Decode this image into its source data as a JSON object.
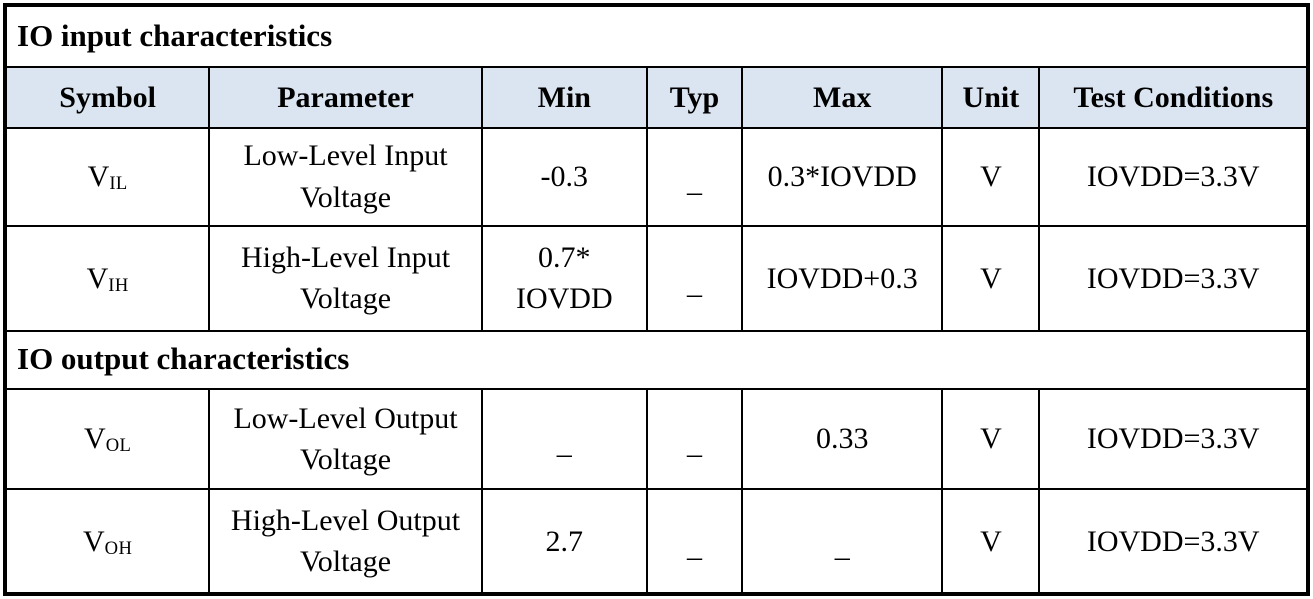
{
  "page": {
    "background_color": "#ffffff",
    "border_color": "#000000",
    "header_bg_color": "#dbe5f1",
    "text_color": "#000000"
  },
  "table": {
    "sections": [
      {
        "title": "IO input characteristics"
      },
      {
        "title": "IO output characteristics"
      }
    ],
    "columns": [
      "Symbol",
      "Parameter",
      "Min",
      "Typ",
      "Max",
      "Unit",
      "Test Conditions"
    ],
    "rows": [
      {
        "symbol_base": "V",
        "symbol_sub": "IL",
        "parameter": "Low-Level Input\nVoltage",
        "min": "-0.3",
        "typ": "_",
        "max": "0.3*IOVDD",
        "unit": "V",
        "test_conditions": "IOVDD=3.3V"
      },
      {
        "symbol_base": "V",
        "symbol_sub": "IH",
        "parameter": "High-Level Input\nVoltage",
        "min": "0.7*\nIOVDD",
        "typ": "_",
        "max": "IOVDD+0.3",
        "unit": "V",
        "test_conditions": "IOVDD=3.3V"
      },
      {
        "symbol_base": "V",
        "symbol_sub": "OL",
        "parameter": "Low-Level Output\nVoltage",
        "min": "_",
        "typ": "_",
        "max": "0.33",
        "unit": "V",
        "test_conditions": "IOVDD=3.3V"
      },
      {
        "symbol_base": "V",
        "symbol_sub": "OH",
        "parameter": "High-Level Output\nVoltage",
        "min": "2.7",
        "typ": "_",
        "max": "_",
        "unit": "V",
        "test_conditions": "IOVDD=3.3V"
      }
    ]
  }
}
